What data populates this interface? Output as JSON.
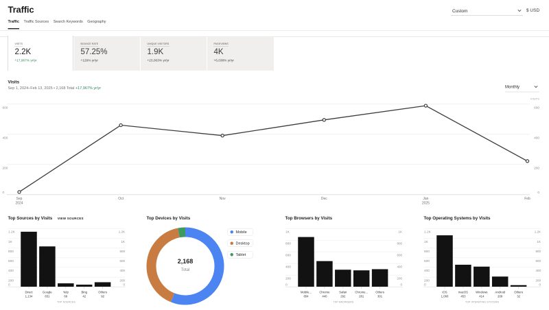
{
  "page_title": "Traffic",
  "header": {
    "date_range_label": "Custom",
    "currency_label": "$ USD"
  },
  "tabs": [
    {
      "label": "Traffic",
      "active": true
    },
    {
      "label": "Traffic Sources",
      "active": false
    },
    {
      "label": "Search Keywords",
      "active": false
    },
    {
      "label": "Geography",
      "active": false
    }
  ],
  "kpis": [
    {
      "label": "VISITS",
      "value": "2.2K",
      "delta": "+17,967% yr/yr",
      "positive": true,
      "active": true
    },
    {
      "label": "BOUNCE RATE",
      "value": "57.25%",
      "delta": "+129% yr/yr",
      "positive": false,
      "active": false
    },
    {
      "label": "UNIQUE VISITORS",
      "value": "1.9K",
      "delta": "+23,063% yr/yr",
      "positive": false,
      "active": false
    },
    {
      "label": "PAGEVIEWS",
      "value": "4K",
      "delta": "+6,038% yr/yr",
      "positive": false,
      "active": false
    }
  ],
  "visits_section": {
    "title": "Visits",
    "subtitle_range": "Sep 1, 2024–Feb 13, 2025 • 2,168 Total",
    "subtitle_delta": "+17,967% yr/yr",
    "granularity_label": "Monthly",
    "axis_right_title": "VISITS"
  },
  "colors": {
    "accent_green": "#2c8456",
    "bar": "#121212",
    "line": "#3d3d3d",
    "pie_blue": "#4c85f2",
    "pie_orange": "#c87c41",
    "pie_green": "#3f9a62"
  },
  "chart_data": [
    {
      "type": "line",
      "title": "Visits",
      "x": [
        {
          "label": "Sep",
          "sublabel": "2024"
        },
        {
          "label": "Oct",
          "sublabel": ""
        },
        {
          "label": "Nov",
          "sublabel": ""
        },
        {
          "label": "Dec",
          "sublabel": ""
        },
        {
          "label": "Jan",
          "sublabel": "2025"
        },
        {
          "label": "Feb",
          "sublabel": ""
        }
      ],
      "values": [
        16,
        459,
        390,
        494,
        588,
        221
      ],
      "total": 2168,
      "ylim": [
        0,
        600
      ],
      "yticks": [
        {
          "v": 0,
          "label": "0"
        },
        {
          "v": 200,
          "label": "200"
        },
        {
          "v": 400,
          "label": "400"
        },
        {
          "v": 600,
          "label": "600"
        }
      ],
      "legend_position": "none",
      "grid": true
    },
    {
      "type": "bar",
      "title": "Top Sources by Visits",
      "link": "VIEW SOURCES",
      "categories": [
        "Direct",
        "Google",
        "Yelp",
        "Bing",
        "Others"
      ],
      "values": [
        1134,
        831,
        69,
        42,
        92
      ],
      "value_labels": [
        "1,134",
        "831",
        "69",
        "42",
        "92"
      ],
      "ylim": [
        0,
        1200
      ],
      "yticks": [
        {
          "v": 0,
          "label": "0"
        },
        {
          "v": 200,
          "label": "200"
        },
        {
          "v": 400,
          "label": "400"
        },
        {
          "v": 600,
          "label": "600"
        },
        {
          "v": 800,
          "label": "800"
        },
        {
          "v": 1000,
          "label": "1K"
        },
        {
          "v": 1200,
          "label": "1.2K"
        }
      ],
      "xlabel": "TOP SOURCES",
      "grid": true
    },
    {
      "type": "pie",
      "title": "Top Devices by Visits",
      "labels": [
        "Mobile",
        "Desktop",
        "Tablet"
      ],
      "values": [
        1216,
        885,
        67
      ],
      "percents": [
        56.1,
        40.8,
        3.1
      ],
      "colors": [
        "#4c85f2",
        "#c87c41",
        "#3f9a62"
      ],
      "center_value": "2,168",
      "center_label": "Total",
      "legend_position": "right"
    },
    {
      "type": "bar",
      "title": "Top Browsers by Visits",
      "link": "",
      "categories": [
        "Mobile...",
        "Chrome",
        "Safari",
        "Chrome...",
        "Others"
      ],
      "values": [
        854,
        440,
        292,
        281,
        301
      ],
      "value_labels": [
        "854",
        "440",
        "292",
        "281",
        "301"
      ],
      "ylim": [
        0,
        1000
      ],
      "yticks": [
        {
          "v": 0,
          "label": "0"
        },
        {
          "v": 200,
          "label": "200"
        },
        {
          "v": 400,
          "label": "400"
        },
        {
          "v": 600,
          "label": "600"
        },
        {
          "v": 800,
          "label": "800"
        },
        {
          "v": 1000,
          "label": "1K"
        }
      ],
      "xlabel": "TOP BROWSERS",
      "grid": true
    },
    {
      "type": "bar",
      "title": "Top Operating Systems by Visits",
      "link": "",
      "categories": [
        "iOS",
        "macOS",
        "Windows",
        "Android",
        "Others"
      ],
      "values": [
        1060,
        453,
        414,
        209,
        32
      ],
      "value_labels": [
        "1,060",
        "453",
        "414",
        "209",
        "32"
      ],
      "ylim": [
        0,
        1200
      ],
      "yticks": [
        {
          "v": 0,
          "label": "0"
        },
        {
          "v": 200,
          "label": "200"
        },
        {
          "v": 400,
          "label": "400"
        },
        {
          "v": 600,
          "label": "600"
        },
        {
          "v": 800,
          "label": "800"
        },
        {
          "v": 1000,
          "label": "1K"
        },
        {
          "v": 1200,
          "label": "1.2K"
        }
      ],
      "xlabel": "TOP OPERATING SYSTEMS",
      "grid": true
    }
  ]
}
